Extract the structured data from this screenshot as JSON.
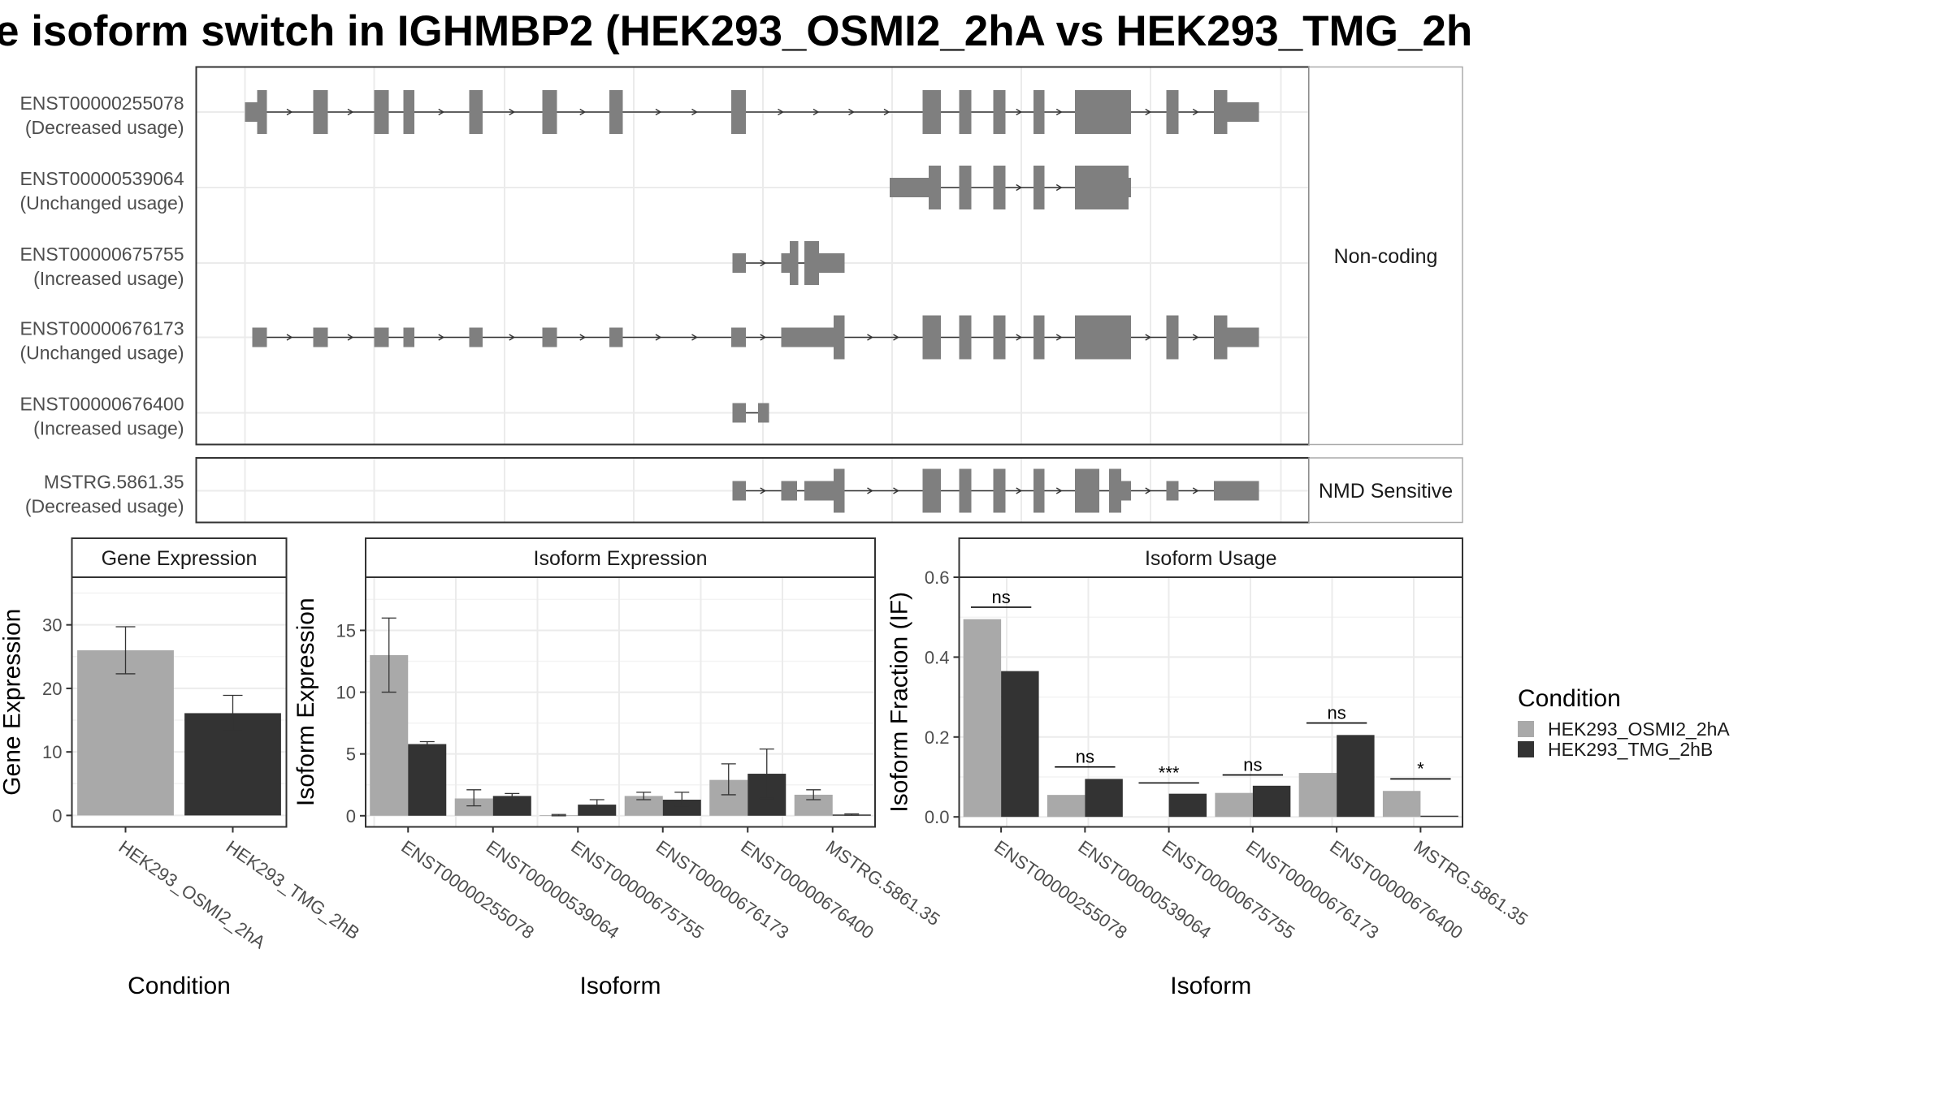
{
  "title": "e isoform switch in IGHMBP2 (HEK293_OSMI2_2hA vs HEK293_TMG_2h",
  "colors": {
    "osmi": "#a9a9a9",
    "tmg": "#333333",
    "exon": "#7f7f7f",
    "intron": "#333333",
    "grid": "#ebebeb",
    "border": "#333333"
  },
  "structure": {
    "groups": [
      {
        "strip": "Non-coding",
        "transcripts": [
          {
            "id": "ENST00000255078",
            "usage": "(Decreased usage)",
            "exons": [
              [
                201,
                211,
                "utr"
              ],
              [
                211,
                219,
                "cds"
              ],
              [
                257,
                269,
                "cds"
              ],
              [
                307,
                319,
                "cds"
              ],
              [
                331,
                340,
                "cds"
              ],
              [
                385,
                396,
                "cds"
              ],
              [
                445,
                457,
                "cds"
              ],
              [
                500,
                511,
                "cds"
              ],
              [
                600,
                612,
                "cds"
              ],
              [
                757,
                772,
                "cds"
              ],
              [
                787,
                797,
                "cds"
              ],
              [
                815,
                825,
                "cds"
              ],
              [
                848,
                857,
                "cds"
              ],
              [
                882,
                928,
                "cds"
              ],
              [
                957,
                967,
                "cds"
              ],
              [
                996,
                1007,
                "cds"
              ],
              [
                1007,
                1033,
                "utr"
              ]
            ]
          },
          {
            "id": "ENST00000539064",
            "usage": "(Unchanged usage)",
            "exons": [
              [
                730,
                762,
                "utr"
              ],
              [
                762,
                772,
                "cds"
              ],
              [
                787,
                797,
                "cds"
              ],
              [
                815,
                825,
                "cds"
              ],
              [
                848,
                857,
                "cds"
              ],
              [
                882,
                926,
                "cds"
              ],
              [
                926,
                928,
                "utr"
              ]
            ]
          },
          {
            "id": "ENST00000675755",
            "usage": "(Increased usage)",
            "exons": [
              [
                601,
                612,
                "utr"
              ],
              [
                641,
                648,
                "utr"
              ],
              [
                648,
                655,
                "cds"
              ],
              [
                660,
                672,
                "cds"
              ],
              [
                672,
                693,
                "utr"
              ]
            ]
          },
          {
            "id": "ENST00000676173",
            "usage": "(Unchanged usage)",
            "exons": [
              [
                207,
                219,
                "utr"
              ],
              [
                257,
                269,
                "utr"
              ],
              [
                307,
                319,
                "utr"
              ],
              [
                331,
                340,
                "utr"
              ],
              [
                385,
                396,
                "utr"
              ],
              [
                445,
                457,
                "utr"
              ],
              [
                500,
                511,
                "utr"
              ],
              [
                600,
                612,
                "utr"
              ],
              [
                641,
                684,
                "utr"
              ],
              [
                684,
                693,
                "cds"
              ],
              [
                757,
                772,
                "cds"
              ],
              [
                787,
                797,
                "cds"
              ],
              [
                815,
                825,
                "cds"
              ],
              [
                848,
                857,
                "cds"
              ],
              [
                882,
                928,
                "cds"
              ],
              [
                957,
                967,
                "cds"
              ],
              [
                996,
                1007,
                "cds"
              ],
              [
                1007,
                1033,
                "utr"
              ]
            ]
          },
          {
            "id": "ENST00000676400",
            "usage": "(Increased usage)",
            "exons": [
              [
                601,
                612,
                "utr"
              ],
              [
                622,
                631,
                "utr"
              ]
            ]
          }
        ]
      },
      {
        "strip": "NMD Sensitive",
        "transcripts": [
          {
            "id": "MSTRG.5861.35",
            "usage": "(Decreased usage)",
            "exons": [
              [
                601,
                612,
                "utr"
              ],
              [
                641,
                654,
                "utr"
              ],
              [
                660,
                684,
                "utr"
              ],
              [
                684,
                693,
                "cds"
              ],
              [
                757,
                772,
                "cds"
              ],
              [
                787,
                797,
                "cds"
              ],
              [
                815,
                825,
                "cds"
              ],
              [
                848,
                857,
                "cds"
              ],
              [
                882,
                902,
                "cds"
              ],
              [
                910,
                920,
                "cds"
              ],
              [
                920,
                928,
                "utr"
              ],
              [
                957,
                967,
                "utr"
              ],
              [
                996,
                1033,
                "utr"
              ]
            ]
          }
        ]
      }
    ]
  },
  "legend": {
    "title": "Condition",
    "items": [
      "HEK293_OSMI2_2hA",
      "HEK293_TMG_2hB"
    ]
  },
  "chart_data": [
    {
      "type": "bar",
      "title": "Gene Expression",
      "xlabel": "Condition",
      "ylabel": "Gene Expression",
      "ylim": [
        -1.8,
        37.5
      ],
      "yticks": [
        0,
        10,
        20,
        30
      ],
      "categories": [
        "HEK293_OSMI2_2hA",
        "HEK293_TMG_2hB"
      ],
      "values": [
        26.0,
        16.1
      ],
      "errors": [
        [
          22.3,
          29.7
        ],
        [
          13.3,
          18.9
        ]
      ]
    },
    {
      "type": "bar",
      "title": "Isoform Expression",
      "xlabel": "Isoform",
      "ylabel": "Isoform Expression",
      "ylim": [
        -0.9,
        19.3
      ],
      "yticks": [
        0,
        5,
        10,
        15
      ],
      "categories": [
        "ENST00000255078",
        "ENST00000539064",
        "ENST00000675755",
        "ENST00000676173",
        "ENST00000676400",
        "MSTRG.5861.35"
      ],
      "series": [
        {
          "name": "HEK293_OSMI2_2hA",
          "values": [
            13.0,
            1.4,
            0.05,
            1.6,
            2.9,
            1.7
          ],
          "errors": [
            [
              10.0,
              16.0
            ],
            [
              0.8,
              2.1
            ],
            [
              0.0,
              0.1
            ],
            [
              1.3,
              1.9
            ],
            [
              1.7,
              4.2
            ],
            [
              1.3,
              2.1
            ]
          ]
        },
        {
          "name": "HEK293_TMG_2hB",
          "values": [
            5.8,
            1.6,
            0.9,
            1.3,
            3.4,
            0.1
          ],
          "errors": [
            [
              5.6,
              6.0
            ],
            [
              1.4,
              1.8
            ],
            [
              0.6,
              1.3
            ],
            [
              0.8,
              1.9
            ],
            [
              1.4,
              5.4
            ],
            [
              0.05,
              0.15
            ]
          ]
        }
      ]
    },
    {
      "type": "bar",
      "title": "Isoform Usage",
      "xlabel": "Isoform",
      "ylabel": "Isoform Fraction (IF)",
      "ylim": [
        -0.025,
        0.6
      ],
      "yticks": [
        0.0,
        0.2,
        0.4,
        0.6
      ],
      "ytick_labels": [
        "0.0",
        "0.2",
        "0.4",
        "0.6"
      ],
      "categories": [
        "ENST00000255078",
        "ENST00000539064",
        "ENST00000675755",
        "ENST00000676173",
        "ENST00000676400",
        "MSTRG.5861.35"
      ],
      "series": [
        {
          "name": "HEK293_OSMI2_2hA",
          "values": [
            0.495,
            0.055,
            0.0,
            0.06,
            0.11,
            0.065
          ]
        },
        {
          "name": "HEK293_TMG_2hB",
          "values": [
            0.365,
            0.095,
            0.058,
            0.078,
            0.205,
            0.003
          ]
        }
      ],
      "significance": [
        {
          "label": "ns",
          "y": 0.525
        },
        {
          "label": "ns",
          "y": 0.125
        },
        {
          "label": "***",
          "y": 0.085
        },
        {
          "label": "ns",
          "y": 0.105
        },
        {
          "label": "ns",
          "y": 0.235
        },
        {
          "label": "*",
          "y": 0.095
        }
      ]
    }
  ]
}
